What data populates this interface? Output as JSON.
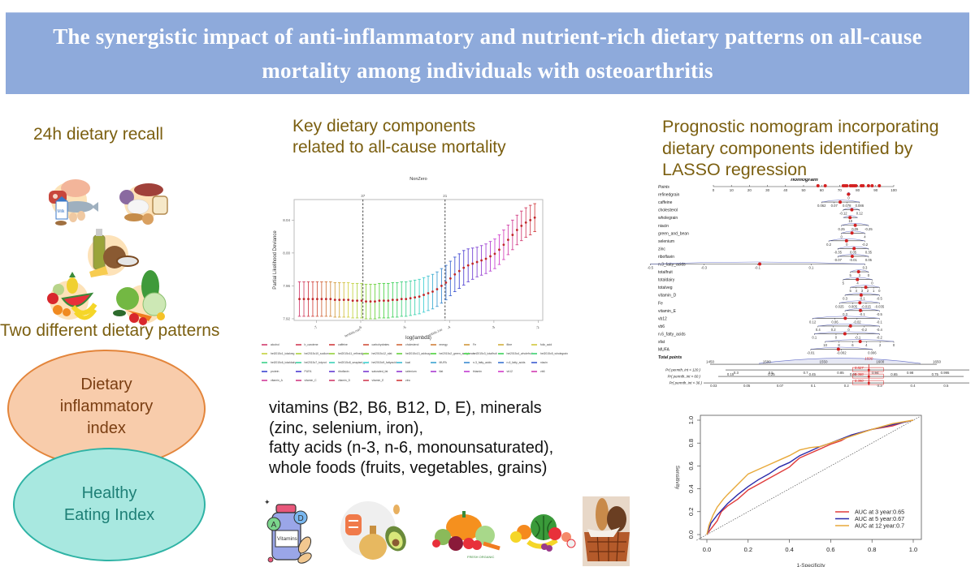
{
  "banner": {
    "title": "The synergistic impact of anti-inflammatory and nutrient-rich dietary patterns on all-cause mortality among individuals with osteoarthritis"
  },
  "left_panel": {
    "recall_title": "24h dietary recall",
    "patterns_title": "Two different dietary patterns",
    "ellipse_dii": [
      "Dietary",
      "inflammatory",
      "index"
    ],
    "ellipse_hei": [
      "Healthy",
      "Eating Index"
    ],
    "food_groups": [
      "protein-dairy-group-icon",
      "starch-bread-group-icon",
      "oil-fat-group-icon",
      "fruit-group-icon",
      "vegetable-group-icon"
    ],
    "milk_label": "Milk"
  },
  "middle_panel": {
    "title_line1": "Key dietary components",
    "title_line2": "related to all-cause mortality",
    "summary_lines": [
      "vitamins (B2, B6, B12, D, E), minerals",
      "(zinc, selenium, iron),",
      "fatty acids (n-3, n-6, monounsaturated),",
      "whole foods (fruits, vegetables, grains)"
    ],
    "bottom_icons": [
      "vitamins-bottle-icon",
      "fatty-acids-salmon-oil-avocado-icon",
      "vegetables-icon",
      "fruits-icon",
      "grains-bread-basket-icon"
    ],
    "vitamin_label": "Vitamins",
    "vitamin_badges": [
      "A",
      "D"
    ],
    "veg_caption": "FRESH ORGANIC"
  },
  "right_panel": {
    "title_lines": [
      "Prognostic nomogram incorporating",
      "dietary components identified by",
      "LASSO regression"
    ]
  },
  "chart_data": [
    {
      "id": "lasso_cv",
      "type": "scatter",
      "title": "NonZero",
      "xlabel": "log(lambda)",
      "ylabel": "Partial Likelihood Deviance",
      "xlim": [
        -7.5,
        -1.9
      ],
      "ylim": [
        7.918,
        8.065
      ],
      "x_ticks": [
        -7,
        -6,
        -5,
        -4,
        -3,
        -2
      ],
      "y_ticks": [
        "7.92",
        "7.96",
        "8.00",
        "8.04"
      ],
      "top_ticks": [
        {
          "x": -5.95,
          "label": "37"
        },
        {
          "x": -4.1,
          "label": "21"
        }
      ],
      "vlines": [
        {
          "x": -5.95,
          "label": "lambda.min"
        },
        {
          "x": -4.1,
          "label": "lambda.1se"
        }
      ],
      "grid": false,
      "series": [
        {
          "name": "mean deviance ± SE",
          "x": [
            -7.38,
            -7.28,
            -7.18,
            -7.08,
            -6.98,
            -6.88,
            -6.78,
            -6.68,
            -6.58,
            -6.48,
            -6.38,
            -6.28,
            -6.18,
            -6.08,
            -5.98,
            -5.88,
            -5.78,
            -5.68,
            -5.58,
            -5.48,
            -5.38,
            -5.28,
            -5.18,
            -5.08,
            -4.98,
            -4.88,
            -4.78,
            -4.68,
            -4.58,
            -4.48,
            -4.38,
            -4.28,
            -4.18,
            -4.08,
            -3.98,
            -3.88,
            -3.78,
            -3.68,
            -3.58,
            -3.48,
            -3.38,
            -3.28,
            -3.18,
            -3.08,
            -2.98,
            -2.88,
            -2.78,
            -2.68,
            -2.58,
            -2.48,
            -2.38,
            -2.28,
            -2.18,
            -2.08
          ],
          "y": [
            7.944,
            7.944,
            7.944,
            7.944,
            7.944,
            7.944,
            7.944,
            7.944,
            7.943,
            7.943,
            7.943,
            7.943,
            7.942,
            7.942,
            7.942,
            7.941,
            7.941,
            7.941,
            7.942,
            7.942,
            7.942,
            7.943,
            7.943,
            7.944,
            7.944,
            7.945,
            7.946,
            7.947,
            7.949,
            7.951,
            7.953,
            7.956,
            7.96,
            7.964,
            7.969,
            7.974,
            7.978,
            7.982,
            7.985,
            7.987,
            7.989,
            7.991,
            7.993,
            7.996,
            7.999,
            8.004,
            8.01,
            8.016,
            8.022,
            8.028,
            8.033,
            8.037,
            8.04,
            8.043
          ],
          "se": [
            0.021,
            0.021,
            0.021,
            0.021,
            0.021,
            0.021,
            0.021,
            0.021,
            0.021,
            0.021,
            0.021,
            0.021,
            0.021,
            0.021,
            0.021,
            0.021,
            0.021,
            0.021,
            0.021,
            0.021,
            0.021,
            0.021,
            0.021,
            0.021,
            0.021,
            0.021,
            0.021,
            0.021,
            0.021,
            0.021,
            0.021,
            0.021,
            0.021,
            0.021,
            0.021,
            0.021,
            0.021,
            0.021,
            0.02,
            0.019,
            0.018,
            0.018,
            0.018,
            0.018,
            0.018,
            0.018,
            0.018,
            0.018,
            0.018,
            0.018,
            0.018,
            0.018,
            0.018,
            0.017
          ]
        }
      ],
      "legend_position": "bottom",
      "legend": [
        "alcohol",
        "b_carotene",
        "caffeine",
        "carbohydrates",
        "cholesterol",
        "energy",
        "Fe",
        "fibre",
        "folic_acid",
        "hei2015c1_totalveg",
        "hei2015c10_sodium",
        "hei2015c11_refinedgrain",
        "hei2015c12_sfat",
        "hei2015c13_addsug",
        "hei2015c2_green_and_bean",
        "hei2015c3_totalfruit",
        "hei2015c4_wholefruit",
        "hei2015c5_wholegrain",
        "hei2015c6_totaldairy",
        "hei2015c7_totprot",
        "hei2015c8_seaplant_prot",
        "hei2015c9_fattyacid",
        "kcal",
        "MUFA",
        "n-3_fatty_acids",
        "n-6_fatty_acids",
        "niacin",
        "protein",
        "PUFA",
        "riboflavin",
        "saturated_fat",
        "selenium",
        "tfat",
        "thiamin",
        "vb12",
        "vb6",
        "vitamin_A",
        "vitamin_C",
        "vitamin_D",
        "vitamin_E",
        "zinc"
      ]
    },
    {
      "id": "nomogram",
      "type": "table",
      "title": "nomogram",
      "points_axis": {
        "label": "Points",
        "ticks": [
          0,
          10,
          20,
          30,
          40,
          50,
          60,
          70,
          80,
          90,
          100
        ]
      },
      "variables": [
        {
          "name": "refinedgrain",
          "ticks": [
            "0"
          ]
        },
        {
          "name": "caffeine",
          "ticks": [
            "0.062",
            "0.07",
            "0.078",
            "0.086"
          ]
        },
        {
          "name": "cholesterol",
          "ticks": [
            "-0.12",
            "0.12"
          ]
        },
        {
          "name": "wholegrain",
          "ticks": [
            "10"
          ]
        },
        {
          "name": "niacin",
          "ticks": [
            "0.25",
            "0.05",
            "-0.25"
          ]
        },
        {
          "name": "green_and_bean",
          "ticks": [
            "0",
            "4"
          ]
        },
        {
          "name": "selenium",
          "ticks": [
            "0.2",
            "0",
            "-0.2"
          ]
        },
        {
          "name": "zinc",
          "ticks": [
            "-0.35",
            "0.05",
            "0.35"
          ]
        },
        {
          "name": "riboflavin",
          "ticks": [
            "-0.07",
            "-0.01",
            "0.05"
          ]
        },
        {
          "name": "n.3_fatty_acids",
          "ticks": [
            "-0.5",
            "-0.3",
            "-0.1",
            "0.1",
            "0.3"
          ]
        },
        {
          "name": "totalfruit",
          "ticks": [
            "5",
            "3",
            "0"
          ]
        },
        {
          "name": "totaldairy",
          "ticks": [
            "5",
            "4",
            "0"
          ]
        },
        {
          "name": "totalveg",
          "ticks": [
            "5",
            "4",
            "3",
            "2",
            "1",
            "0"
          ]
        },
        {
          "name": "vitamin_D",
          "ticks": [
            "0.3",
            "-0.1",
            "-0.5"
          ]
        },
        {
          "name": "Fe",
          "ticks": [
            "0.025",
            "0.005",
            "-0.015",
            "-0.035"
          ]
        },
        {
          "name": "vitamin_E",
          "ticks": [
            "0.3",
            "-0.1",
            "-0.5"
          ]
        },
        {
          "name": "vb12",
          "ticks": [
            "0.12",
            "0.06",
            "-0.02",
            "-0.1"
          ]
        },
        {
          "name": "vb6",
          "ticks": [
            "0.4",
            "0.2",
            "0",
            "-0.2",
            "-0.4"
          ]
        },
        {
          "name": "n.6_fatty_acids",
          "ticks": [
            "0.1",
            "0",
            "-0.1",
            "-0.2"
          ]
        },
        {
          "name": "sfat",
          "ticks": [
            "10",
            "8",
            "6",
            "4",
            "2",
            "0"
          ]
        },
        {
          "name": "MUFA",
          "ticks": [
            "-0.01",
            "-0.002",
            "0.006"
          ]
        }
      ],
      "total_points": {
        "label": "Total points",
        "ticks": [
          "1450",
          "1500",
          "1550",
          "1600",
          "1650"
        ],
        "highlight": "1590"
      },
      "probabilities": [
        {
          "label": "Pr( permth_int < 120 )",
          "ticks": [
            "0.3",
            "0.5",
            "0.7",
            "0.85",
            "0.94",
            "0.98",
            "0.995"
          ],
          "highlight": "0.827"
        },
        {
          "label": "Pr( permth_int < 60 )",
          "ticks": [
            "0.15",
            "0.25",
            "0.45",
            "0.55",
            "0.65",
            "0.75"
          ],
          "highlight": "0.388"
        },
        {
          "label": "Pr( permth_int < 36 )",
          "ticks": [
            "0.03",
            "0.05",
            "0.07",
            "0.1",
            "0.2",
            "0.3",
            "0.4",
            "0.5"
          ],
          "highlight": "0.390"
        }
      ],
      "points_markers": [
        58,
        62,
        72,
        73,
        74,
        76,
        77,
        78,
        79,
        82,
        83,
        86,
        88,
        92
      ]
    },
    {
      "id": "roc",
      "type": "line",
      "xlabel": "1-Specificity",
      "ylabel": "Sensitivity",
      "xlim": [
        0,
        1
      ],
      "ylim": [
        0,
        1
      ],
      "x_ticks": [
        "0.0",
        "0.2",
        "0.4",
        "0.6",
        "0.8",
        "1.0"
      ],
      "y_ticks": [
        "0.0",
        "0.2",
        "0.4",
        "0.6",
        "0.8",
        "1.0"
      ],
      "legend_position": "bottom-right",
      "series": [
        {
          "name": "AUC at 3 year:0.65",
          "color": "#e03c3c",
          "x": [
            0,
            0.02,
            0.05,
            0.07,
            0.1,
            0.15,
            0.2,
            0.25,
            0.3,
            0.35,
            0.4,
            0.43,
            0.45,
            0.5,
            0.55,
            0.6,
            0.65,
            0.7,
            0.8,
            0.9,
            0.95,
            1
          ],
          "y": [
            0,
            0.05,
            0.12,
            0.2,
            0.25,
            0.31,
            0.39,
            0.44,
            0.49,
            0.54,
            0.59,
            0.64,
            0.67,
            0.71,
            0.75,
            0.79,
            0.82,
            0.87,
            0.92,
            0.95,
            0.98,
            1
          ]
        },
        {
          "name": "AUC at 5 year:0.67",
          "color": "#2b2baa",
          "x": [
            0,
            0.02,
            0.05,
            0.1,
            0.15,
            0.2,
            0.25,
            0.3,
            0.35,
            0.4,
            0.45,
            0.5,
            0.55,
            0.6,
            0.7,
            0.8,
            0.9,
            1
          ],
          "y": [
            0,
            0.1,
            0.17,
            0.27,
            0.35,
            0.42,
            0.48,
            0.53,
            0.59,
            0.63,
            0.69,
            0.73,
            0.77,
            0.8,
            0.87,
            0.92,
            0.96,
            1
          ]
        },
        {
          "name": "AUC at 12 year:0.7",
          "color": "#e8a93a",
          "x": [
            0,
            0.01,
            0.03,
            0.05,
            0.08,
            0.1,
            0.15,
            0.2,
            0.25,
            0.3,
            0.35,
            0.4,
            0.45,
            0.5,
            0.55,
            0.6,
            0.7,
            0.8,
            0.9,
            1
          ],
          "y": [
            0,
            0.08,
            0.17,
            0.24,
            0.31,
            0.35,
            0.44,
            0.53,
            0.57,
            0.61,
            0.65,
            0.69,
            0.74,
            0.76,
            0.77,
            0.8,
            0.86,
            0.92,
            0.97,
            1
          ]
        }
      ],
      "reference_line": "diagonal dashed"
    }
  ]
}
